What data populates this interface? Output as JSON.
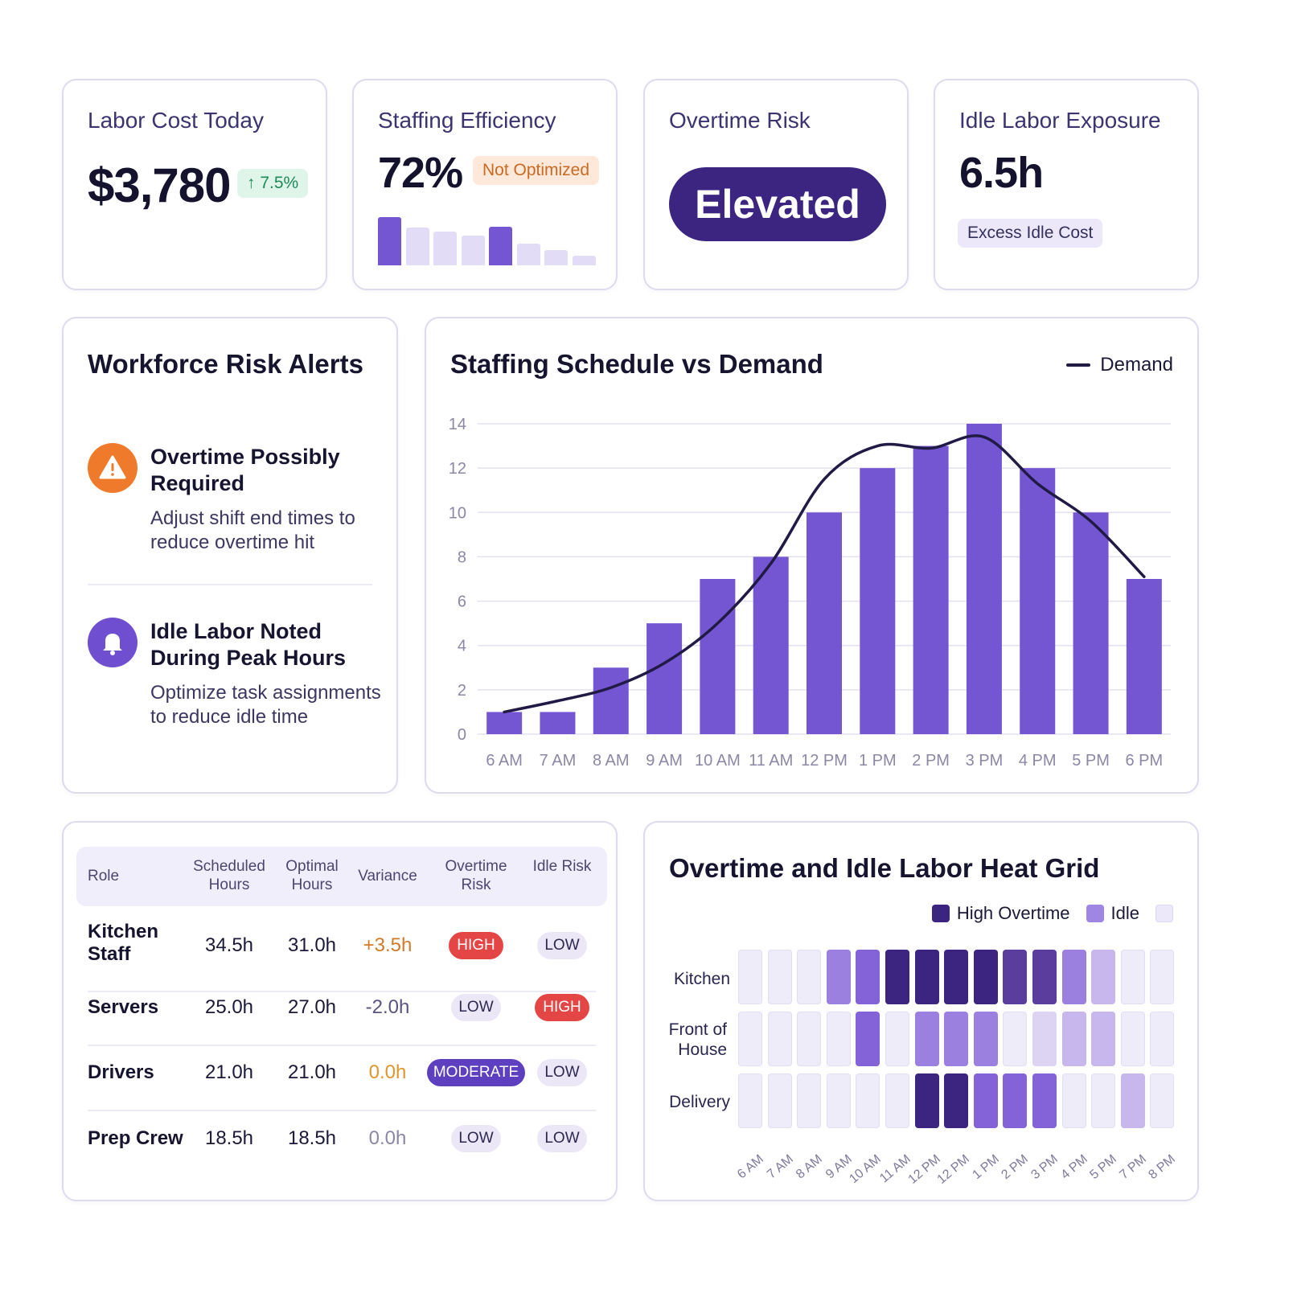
{
  "kpis": {
    "labor_cost": {
      "title": "Labor Cost Today",
      "value": "$3,780",
      "change": "↑ 7.5%"
    },
    "staffing_efficiency": {
      "title": "Staffing Efficiency",
      "value": "72%",
      "badge": "Not Optimized",
      "mini_bars": [
        1,
        0.78,
        0.7,
        0.62,
        0.8,
        0.45,
        0.32,
        0.2
      ],
      "mini_bar_highlight": [
        true,
        false,
        false,
        false,
        true,
        false,
        false,
        false
      ]
    },
    "overtime_risk": {
      "title": "Overtime Risk",
      "status": "Elevated"
    },
    "idle_labor": {
      "title": "Idle Labor Exposure",
      "value": "6.5h",
      "tag": "Excess Idle Cost"
    }
  },
  "alerts": {
    "title": "Workforce Risk Alerts",
    "items": [
      {
        "title": "Overtime Possibly Required",
        "body": "Adjust shift end times to reduce overtime hit",
        "icon": "warning-icon",
        "color": "#f07a2b"
      },
      {
        "title": "Idle Labor Noted During Peak Hours",
        "body": "Optimize task assignments to reduce idle time",
        "icon": "bell-icon",
        "color": "#6f4fcf"
      }
    ]
  },
  "schedule_chart": {
    "title": "Staffing Schedule vs Demand",
    "legend": "Demand"
  },
  "chart_data": {
    "type": "bar",
    "title": "Staffing Schedule vs Demand",
    "categories": [
      "6 AM",
      "7 AM",
      "8 AM",
      "9 AM",
      "10 AM",
      "11 AM",
      "12 PM",
      "1 PM",
      "2 PM",
      "3 PM",
      "4 PM",
      "5 PM",
      "6 PM"
    ],
    "series": [
      {
        "values": [
          1,
          1,
          3,
          5,
          7,
          8,
          10,
          12,
          13,
          14,
          12,
          10,
          7
        ]
      },
      {
        "name": "Demand",
        "type": "line",
        "values": [
          1.0,
          1.5,
          2.1,
          3.2,
          5.0,
          7.7,
          11.5,
          13.0,
          12.9,
          13.4,
          11.3,
          9.6,
          7.1
        ]
      }
    ],
    "ylim": [
      0,
      14
    ],
    "yticks": [
      0,
      2,
      4,
      6,
      8,
      10,
      12,
      14
    ],
    "grid": true,
    "legend_position": "top-right",
    "bar_color": "#7556d2",
    "line_color": "#201a45"
  },
  "table": {
    "headers": [
      "Role",
      "Scheduled Hours",
      "Optimal Hours",
      "Variance",
      "Overtime Risk",
      "Idle Risk"
    ],
    "rows": [
      {
        "role": "Kitchen Staff",
        "scheduled": "34.5h",
        "optimal": "31.0h",
        "variance": "+3.5h",
        "variance_color": "#d07a2a",
        "overtime": "HIGH",
        "idle": "LOW"
      },
      {
        "role": "Servers",
        "scheduled": "25.0h",
        "optimal": "27.0h",
        "variance": "-2.0h",
        "variance_color": "#5a5580",
        "overtime": "LOW",
        "idle": "HIGH"
      },
      {
        "role": "Drivers",
        "scheduled": "21.0h",
        "optimal": "21.0h",
        "variance": "0.0h",
        "variance_color": "#e0962e",
        "overtime": "MODERATE",
        "idle": "LOW"
      },
      {
        "role": "Prep Crew",
        "scheduled": "18.5h",
        "optimal": "18.5h",
        "variance": "0.0h",
        "variance_color": "#8a86a6",
        "overtime": "LOW",
        "idle": "LOW"
      }
    ]
  },
  "heat_grid": {
    "title": "Overtime and Idle Labor Heat Grid",
    "legend": [
      "High Overtime",
      "Idle",
      ""
    ],
    "legend_colors": [
      "#3b2580",
      "#9f86e4",
      "#ece8fa"
    ],
    "rows": [
      "Kitchen",
      "Front of House",
      "Delivery"
    ],
    "columns": [
      "6 AM",
      "7 AM",
      "8 AM",
      "9 AM",
      "10 AM",
      "11 AM",
      "12 PM",
      "12 PM",
      "1 PM",
      "2 PM",
      "3 PM",
      "4 PM",
      "5 PM",
      "7 PM",
      "8 PM"
    ],
    "palette": [
      "#efecf9",
      "#ddd3f3",
      "#c7b7ec",
      "#9b80e0",
      "#8463d8",
      "#5b3d9e",
      "#3b2580"
    ],
    "levels": [
      [
        0,
        0,
        0,
        3,
        4,
        6,
        6,
        6,
        6,
        5,
        5,
        3,
        2,
        0,
        0
      ],
      [
        0,
        0,
        0,
        0,
        4,
        0,
        3,
        3,
        3,
        0,
        1,
        2,
        2,
        0,
        0
      ],
      [
        0,
        0,
        0,
        0,
        0,
        0,
        6,
        6,
        4,
        4,
        4,
        0,
        0,
        2,
        0
      ]
    ]
  }
}
